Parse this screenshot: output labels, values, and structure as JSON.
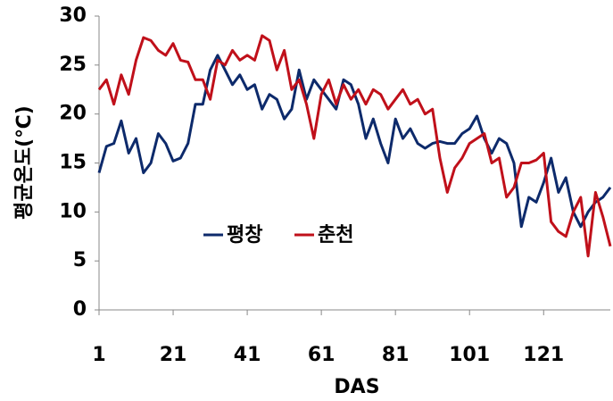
{
  "chart_data": {
    "type": "line",
    "y_label": "평균온도(℃)",
    "x_label": "DAS",
    "x": [
      1,
      3,
      5,
      7,
      9,
      11,
      13,
      15,
      17,
      19,
      21,
      23,
      25,
      27,
      29,
      31,
      33,
      35,
      37,
      39,
      41,
      43,
      45,
      47,
      49,
      51,
      53,
      55,
      57,
      59,
      61,
      63,
      65,
      67,
      69,
      71,
      73,
      75,
      77,
      79,
      81,
      83,
      85,
      87,
      89,
      91,
      93,
      95,
      97,
      99,
      101,
      103,
      105,
      107,
      109,
      111,
      113,
      115,
      117,
      119,
      121,
      123,
      125,
      127,
      129,
      131,
      133,
      135,
      137,
      139
    ],
    "series": [
      {
        "name": "평창",
        "color": "#0d2a6b",
        "values": [
          14,
          16.7,
          17,
          19.3,
          16,
          17.5,
          14,
          15,
          18,
          17,
          15.2,
          15.5,
          17,
          21,
          21,
          24.5,
          26,
          24.5,
          23,
          24,
          22.5,
          23,
          20.5,
          22,
          21.5,
          19.5,
          20.5,
          24.5,
          21.5,
          23.5,
          22.5,
          21.5,
          20.5,
          23.5,
          23,
          21,
          17.5,
          19.5,
          17,
          15,
          19.5,
          17.5,
          18.5,
          17,
          16.5,
          17,
          17.2,
          17,
          17,
          18,
          18.5,
          19.8,
          17.5,
          16,
          17.5,
          17,
          15,
          8.5,
          11.5,
          11,
          13,
          15.5,
          12,
          13.5,
          10,
          8.5,
          10,
          11,
          11.5,
          12.5
        ]
      },
      {
        "name": "춘천",
        "color": "#c0101a",
        "values": [
          22.5,
          23.5,
          21,
          24,
          22,
          25.5,
          27.8,
          27.5,
          26.5,
          26,
          27.2,
          25.5,
          25.3,
          23.5,
          23.5,
          21.5,
          25.5,
          25,
          26.5,
          25.5,
          26,
          25.5,
          28,
          27.5,
          24.5,
          26.5,
          22.5,
          23.5,
          21,
          17.5,
          22,
          23.5,
          21,
          23,
          21.5,
          22.5,
          21,
          22.5,
          22,
          20.5,
          21.5,
          22.5,
          21,
          21.5,
          20,
          20.5,
          15.5,
          12,
          14.5,
          15.5,
          17,
          17.5,
          18,
          15,
          15.5,
          11.5,
          12.5,
          15,
          15,
          15.3,
          16,
          9,
          8,
          7.5,
          10,
          11.5,
          5.5,
          12,
          9.5,
          6.5
        ]
      }
    ],
    "xlim": [
      1,
      139
    ],
    "xticks": [
      1,
      21,
      41,
      61,
      81,
      101,
      121
    ],
    "ylim": [
      0,
      30
    ],
    "yticks": [
      0,
      5,
      10,
      15,
      20,
      25,
      30
    ]
  }
}
